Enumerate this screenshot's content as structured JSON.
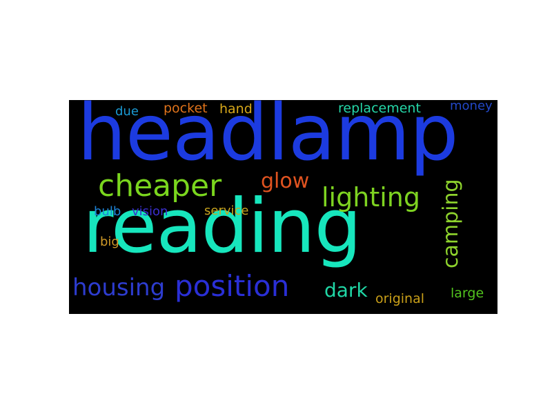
{
  "background": "#000000",
  "page_background": "#ffffff",
  "words": [
    {
      "id": "headlamp",
      "text": "headlamp",
      "color": "#1c3be0"
    },
    {
      "id": "reading",
      "text": "reading",
      "color": "#17e6bd"
    },
    {
      "id": "cheaper",
      "text": "cheaper",
      "color": "#7ad61e"
    },
    {
      "id": "glow",
      "text": "glow",
      "color": "#e05320"
    },
    {
      "id": "lighting",
      "text": "lighting",
      "color": "#7ed321"
    },
    {
      "id": "camping",
      "text": "camping",
      "color": "#8ed32d"
    },
    {
      "id": "position",
      "text": "position",
      "color": "#2a2fd6"
    },
    {
      "id": "housing",
      "text": "housing",
      "color": "#2d3ccf"
    },
    {
      "id": "dark",
      "text": "dark",
      "color": "#20d7a6"
    },
    {
      "id": "replacement",
      "text": "replacement",
      "color": "#25d7a8"
    },
    {
      "id": "money",
      "text": "money",
      "color": "#2348c8"
    },
    {
      "id": "pocket",
      "text": "pocket",
      "color": "#e0731b"
    },
    {
      "id": "hand",
      "text": "hand",
      "color": "#d8a81a"
    },
    {
      "id": "due",
      "text": "due",
      "color": "#1b9ad4"
    },
    {
      "id": "bulb",
      "text": "bulb",
      "color": "#1d83d8"
    },
    {
      "id": "vision",
      "text": "vision",
      "color": "#3a2fcf"
    },
    {
      "id": "service",
      "text": "service",
      "color": "#c9a51e"
    },
    {
      "id": "big",
      "text": "big",
      "color": "#d09a28"
    },
    {
      "id": "original",
      "text": "original",
      "color": "#caa019"
    },
    {
      "id": "large",
      "text": "large",
      "color": "#52c41e"
    }
  ]
}
